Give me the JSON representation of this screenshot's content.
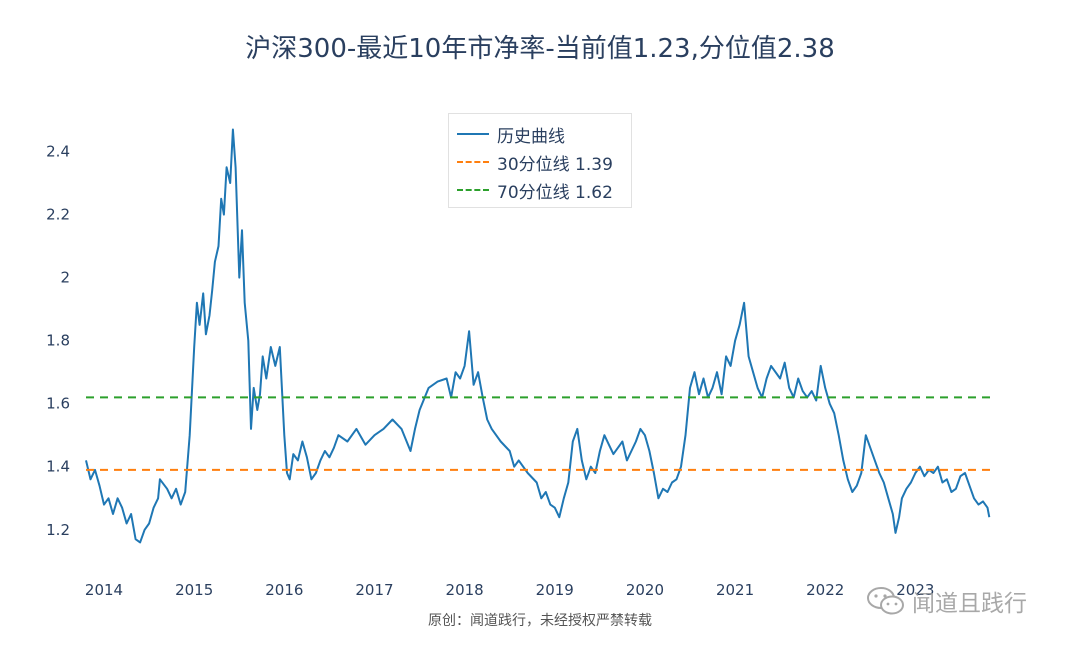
{
  "chart_data": {
    "type": "line",
    "title": "沪深300-最近10年市净率-当前值1.23,分位值2.38",
    "xlabel": "",
    "ylabel": "",
    "x_ticks": [
      "2014",
      "2015",
      "2016",
      "2017",
      "2018",
      "2019",
      "2020",
      "2021",
      "2022",
      "2023"
    ],
    "x_range": [
      2013.8,
      2023.85
    ],
    "y_ticks": [
      "1.2",
      "1.4",
      "1.6",
      "1.8",
      "2",
      "2.2",
      "2.4"
    ],
    "y_tick_values": [
      1.2,
      1.4,
      1.6,
      1.8,
      2.0,
      2.2,
      2.4
    ],
    "ylim": [
      1.12,
      2.5
    ],
    "legend_position": "top-center",
    "series": [
      {
        "name": "历史曲线",
        "color": "#1f77b4",
        "style": "solid",
        "points": [
          [
            2013.8,
            1.42
          ],
          [
            2013.85,
            1.36
          ],
          [
            2013.9,
            1.39
          ],
          [
            2013.95,
            1.34
          ],
          [
            2014.0,
            1.28
          ],
          [
            2014.05,
            1.3
          ],
          [
            2014.1,
            1.25
          ],
          [
            2014.15,
            1.3
          ],
          [
            2014.2,
            1.27
          ],
          [
            2014.25,
            1.22
          ],
          [
            2014.3,
            1.25
          ],
          [
            2014.35,
            1.17
          ],
          [
            2014.4,
            1.16
          ],
          [
            2014.45,
            1.2
          ],
          [
            2014.5,
            1.22
          ],
          [
            2014.55,
            1.27
          ],
          [
            2014.6,
            1.3
          ],
          [
            2014.62,
            1.36
          ],
          [
            2014.7,
            1.33
          ],
          [
            2014.75,
            1.3
          ],
          [
            2014.8,
            1.33
          ],
          [
            2014.85,
            1.28
          ],
          [
            2014.9,
            1.32
          ],
          [
            2014.95,
            1.5
          ],
          [
            2015.0,
            1.78
          ],
          [
            2015.03,
            1.92
          ],
          [
            2015.06,
            1.85
          ],
          [
            2015.1,
            1.95
          ],
          [
            2015.13,
            1.82
          ],
          [
            2015.17,
            1.88
          ],
          [
            2015.2,
            1.96
          ],
          [
            2015.23,
            2.05
          ],
          [
            2015.27,
            2.1
          ],
          [
            2015.3,
            2.25
          ],
          [
            2015.33,
            2.2
          ],
          [
            2015.36,
            2.35
          ],
          [
            2015.4,
            2.3
          ],
          [
            2015.43,
            2.47
          ],
          [
            2015.46,
            2.35
          ],
          [
            2015.5,
            2.0
          ],
          [
            2015.53,
            2.15
          ],
          [
            2015.56,
            1.92
          ],
          [
            2015.6,
            1.8
          ],
          [
            2015.63,
            1.52
          ],
          [
            2015.66,
            1.65
          ],
          [
            2015.7,
            1.58
          ],
          [
            2015.73,
            1.63
          ],
          [
            2015.76,
            1.75
          ],
          [
            2015.8,
            1.68
          ],
          [
            2015.85,
            1.78
          ],
          [
            2015.9,
            1.72
          ],
          [
            2015.95,
            1.78
          ],
          [
            2016.0,
            1.5
          ],
          [
            2016.03,
            1.38
          ],
          [
            2016.06,
            1.36
          ],
          [
            2016.1,
            1.44
          ],
          [
            2016.15,
            1.42
          ],
          [
            2016.2,
            1.48
          ],
          [
            2016.25,
            1.43
          ],
          [
            2016.3,
            1.36
          ],
          [
            2016.35,
            1.38
          ],
          [
            2016.4,
            1.42
          ],
          [
            2016.45,
            1.45
          ],
          [
            2016.5,
            1.43
          ],
          [
            2016.55,
            1.46
          ],
          [
            2016.6,
            1.5
          ],
          [
            2016.7,
            1.48
          ],
          [
            2016.8,
            1.52
          ],
          [
            2016.9,
            1.47
          ],
          [
            2017.0,
            1.5
          ],
          [
            2017.1,
            1.52
          ],
          [
            2017.2,
            1.55
          ],
          [
            2017.3,
            1.52
          ],
          [
            2017.4,
            1.45
          ],
          [
            2017.45,
            1.52
          ],
          [
            2017.5,
            1.58
          ],
          [
            2017.6,
            1.65
          ],
          [
            2017.7,
            1.67
          ],
          [
            2017.8,
            1.68
          ],
          [
            2017.85,
            1.62
          ],
          [
            2017.9,
            1.7
          ],
          [
            2017.95,
            1.68
          ],
          [
            2018.0,
            1.72
          ],
          [
            2018.05,
            1.83
          ],
          [
            2018.1,
            1.66
          ],
          [
            2018.15,
            1.7
          ],
          [
            2018.2,
            1.62
          ],
          [
            2018.25,
            1.55
          ],
          [
            2018.3,
            1.52
          ],
          [
            2018.4,
            1.48
          ],
          [
            2018.5,
            1.45
          ],
          [
            2018.55,
            1.4
          ],
          [
            2018.6,
            1.42
          ],
          [
            2018.7,
            1.38
          ],
          [
            2018.8,
            1.35
          ],
          [
            2018.85,
            1.3
          ],
          [
            2018.9,
            1.32
          ],
          [
            2018.95,
            1.28
          ],
          [
            2019.0,
            1.27
          ],
          [
            2019.05,
            1.24
          ],
          [
            2019.1,
            1.3
          ],
          [
            2019.15,
            1.35
          ],
          [
            2019.2,
            1.48
          ],
          [
            2019.25,
            1.52
          ],
          [
            2019.3,
            1.42
          ],
          [
            2019.35,
            1.36
          ],
          [
            2019.4,
            1.4
          ],
          [
            2019.45,
            1.38
          ],
          [
            2019.5,
            1.45
          ],
          [
            2019.55,
            1.5
          ],
          [
            2019.6,
            1.47
          ],
          [
            2019.65,
            1.44
          ],
          [
            2019.7,
            1.46
          ],
          [
            2019.75,
            1.48
          ],
          [
            2019.8,
            1.42
          ],
          [
            2019.85,
            1.45
          ],
          [
            2019.9,
            1.48
          ],
          [
            2019.95,
            1.52
          ],
          [
            2020.0,
            1.5
          ],
          [
            2020.05,
            1.45
          ],
          [
            2020.1,
            1.38
          ],
          [
            2020.15,
            1.3
          ],
          [
            2020.2,
            1.33
          ],
          [
            2020.25,
            1.32
          ],
          [
            2020.3,
            1.35
          ],
          [
            2020.35,
            1.36
          ],
          [
            2020.4,
            1.4
          ],
          [
            2020.45,
            1.5
          ],
          [
            2020.5,
            1.65
          ],
          [
            2020.55,
            1.7
          ],
          [
            2020.6,
            1.63
          ],
          [
            2020.65,
            1.68
          ],
          [
            2020.7,
            1.62
          ],
          [
            2020.75,
            1.65
          ],
          [
            2020.8,
            1.7
          ],
          [
            2020.85,
            1.63
          ],
          [
            2020.9,
            1.75
          ],
          [
            2020.95,
            1.72
          ],
          [
            2021.0,
            1.8
          ],
          [
            2021.05,
            1.85
          ],
          [
            2021.1,
            1.92
          ],
          [
            2021.15,
            1.75
          ],
          [
            2021.2,
            1.7
          ],
          [
            2021.25,
            1.65
          ],
          [
            2021.3,
            1.62
          ],
          [
            2021.35,
            1.68
          ],
          [
            2021.4,
            1.72
          ],
          [
            2021.5,
            1.68
          ],
          [
            2021.55,
            1.73
          ],
          [
            2021.6,
            1.65
          ],
          [
            2021.65,
            1.62
          ],
          [
            2021.7,
            1.68
          ],
          [
            2021.75,
            1.64
          ],
          [
            2021.8,
            1.62
          ],
          [
            2021.85,
            1.64
          ],
          [
            2021.9,
            1.61
          ],
          [
            2021.95,
            1.72
          ],
          [
            2022.0,
            1.65
          ],
          [
            2022.05,
            1.6
          ],
          [
            2022.1,
            1.57
          ],
          [
            2022.15,
            1.5
          ],
          [
            2022.2,
            1.42
          ],
          [
            2022.25,
            1.36
          ],
          [
            2022.3,
            1.32
          ],
          [
            2022.35,
            1.34
          ],
          [
            2022.4,
            1.38
          ],
          [
            2022.45,
            1.5
          ],
          [
            2022.5,
            1.46
          ],
          [
            2022.55,
            1.42
          ],
          [
            2022.6,
            1.38
          ],
          [
            2022.65,
            1.35
          ],
          [
            2022.7,
            1.3
          ],
          [
            2022.75,
            1.25
          ],
          [
            2022.78,
            1.19
          ],
          [
            2022.82,
            1.24
          ],
          [
            2022.85,
            1.3
          ],
          [
            2022.9,
            1.33
          ],
          [
            2022.95,
            1.35
          ],
          [
            2023.0,
            1.38
          ],
          [
            2023.05,
            1.4
          ],
          [
            2023.1,
            1.37
          ],
          [
            2023.15,
            1.39
          ],
          [
            2023.2,
            1.38
          ],
          [
            2023.25,
            1.4
          ],
          [
            2023.3,
            1.35
          ],
          [
            2023.35,
            1.36
          ],
          [
            2023.4,
            1.32
          ],
          [
            2023.45,
            1.33
          ],
          [
            2023.5,
            1.37
          ],
          [
            2023.55,
            1.38
          ],
          [
            2023.6,
            1.34
          ],
          [
            2023.65,
            1.3
          ],
          [
            2023.7,
            1.28
          ],
          [
            2023.75,
            1.29
          ],
          [
            2023.8,
            1.27
          ],
          [
            2023.82,
            1.24
          ]
        ]
      },
      {
        "name": "30分位线 1.39",
        "color": "#ff7f0e",
        "style": "dash",
        "constant": 1.39
      },
      {
        "name": "70分位线 1.62",
        "color": "#2ca02c",
        "style": "dash",
        "constant": 1.62
      }
    ]
  },
  "source_note": "原创：闻道践行，未经授权严禁转载",
  "watermark": {
    "text": "闻道且践行",
    "icon": "wechat-icon"
  }
}
